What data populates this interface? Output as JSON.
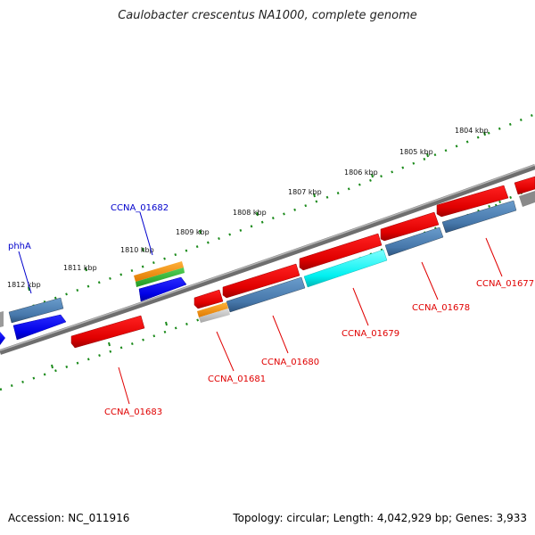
{
  "title": "Caulobacter crescentus NA1000, complete genome",
  "footer": {
    "accession": "Accession: NC_011916",
    "summary": "Topology: circular; Length: 4,042,929 bp; Genes: 3,933"
  },
  "ticks": [
    "1804 kbp",
    "1805 kbp",
    "1806 kbp",
    "1807 kbp",
    "1808 kbp",
    "1809 kbp",
    "1810 kbp",
    "1811 kbp",
    "1812 kbp"
  ],
  "gene_labels": [
    {
      "name": "CCNA_01682",
      "color": "#0000cc"
    },
    {
      "name": "phhA",
      "color": "#0000cc"
    },
    {
      "name": "CCNA_01677",
      "color": "#e00000"
    },
    {
      "name": "CCNA_01678",
      "color": "#e00000"
    },
    {
      "name": "CCNA_01679",
      "color": "#e00000"
    },
    {
      "name": "CCNA_01680",
      "color": "#e00000"
    },
    {
      "name": "CCNA_01681",
      "color": "#e00000"
    },
    {
      "name": "CCNA_01683",
      "color": "#e00000"
    }
  ],
  "colors": {
    "backbone": "#7a7a7a",
    "tick_marks": "#1a8a1a",
    "cds_red": "#ff0000",
    "feature_steelblue": "#4a7fb5",
    "feature_blue": "#0000ee",
    "feature_cyan": "#00ffff",
    "feature_orange": "#ff9900",
    "feature_green": "#33bb33"
  }
}
